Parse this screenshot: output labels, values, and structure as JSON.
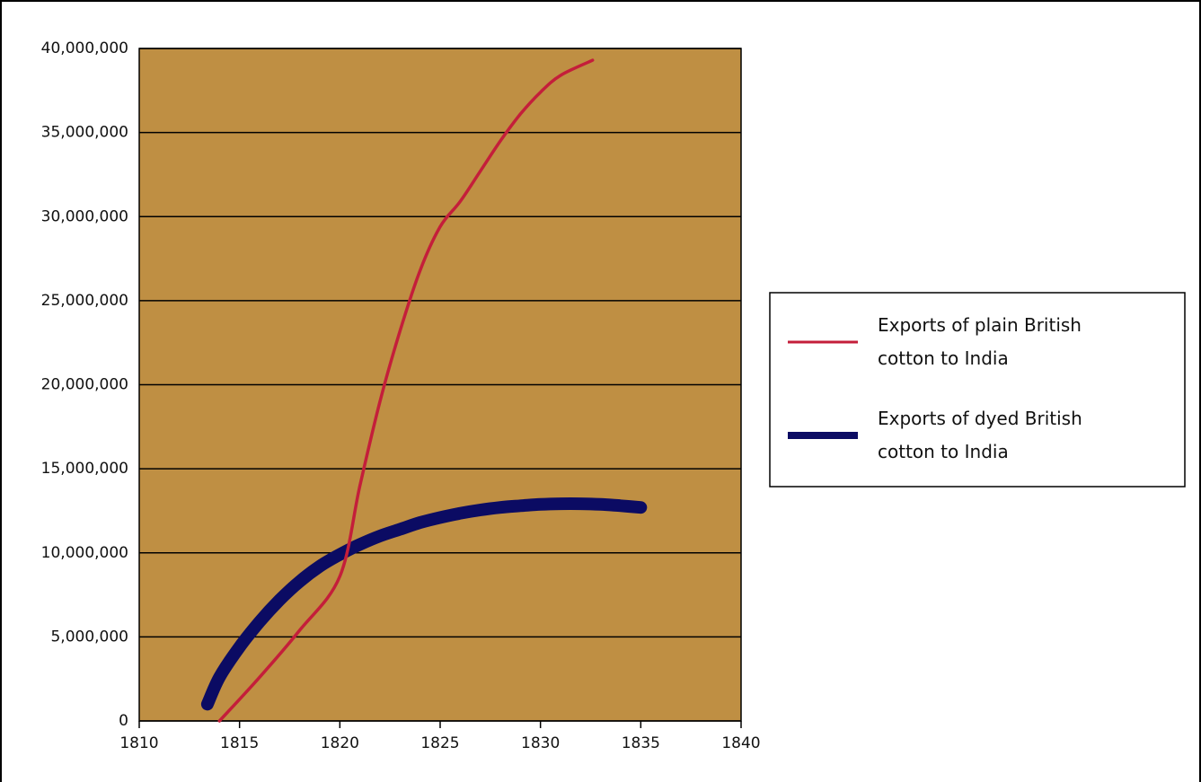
{
  "chart_data": {
    "type": "line",
    "title": "",
    "xlabel": "",
    "ylabel": "",
    "xlim": [
      1810,
      1840
    ],
    "ylim": [
      0,
      40000000
    ],
    "x_ticks": [
      1810,
      1815,
      1820,
      1825,
      1830,
      1835,
      1840
    ],
    "x_tick_labels": [
      "1810",
      "1815",
      "1820",
      "1825",
      "1830",
      "1835",
      "1840"
    ],
    "y_ticks": [
      0,
      5000000,
      10000000,
      15000000,
      20000000,
      25000000,
      30000000,
      35000000,
      40000000
    ],
    "y_tick_labels": [
      "0",
      "5,000,000",
      "10,000,000",
      "15,000,000",
      "20,000,000",
      "25,000,000",
      "30,000,000",
      "35,000,000",
      "40,000,000"
    ],
    "grid": "horizontal",
    "plot_background": "#BF8F43",
    "legend_position": "right",
    "series": [
      {
        "name": "Exports of plain British cotton to India",
        "color": "#C41E3A",
        "style": "thin",
        "points": [
          [
            1814,
            0
          ],
          [
            1816,
            2600000
          ],
          [
            1818,
            5400000
          ],
          [
            1820,
            8600000
          ],
          [
            1821,
            14000000
          ],
          [
            1822,
            19000000
          ],
          [
            1823,
            23200000
          ],
          [
            1824,
            26800000
          ],
          [
            1825,
            29400000
          ],
          [
            1826,
            30900000
          ],
          [
            1827,
            32700000
          ],
          [
            1828,
            34500000
          ],
          [
            1829,
            36100000
          ],
          [
            1830,
            37400000
          ],
          [
            1831,
            38400000
          ],
          [
            1832.6,
            39300000
          ]
        ]
      },
      {
        "name": "Exports of dyed British cotton to India",
        "color": "#0B0B63",
        "style": "thick",
        "points": [
          [
            1813.4,
            1000000
          ],
          [
            1814,
            2600000
          ],
          [
            1815,
            4400000
          ],
          [
            1816,
            5900000
          ],
          [
            1817,
            7200000
          ],
          [
            1818,
            8300000
          ],
          [
            1819,
            9200000
          ],
          [
            1820,
            9900000
          ],
          [
            1821,
            10500000
          ],
          [
            1822,
            11000000
          ],
          [
            1823,
            11400000
          ],
          [
            1824,
            11800000
          ],
          [
            1825,
            12100000
          ],
          [
            1826,
            12350000
          ],
          [
            1827,
            12550000
          ],
          [
            1828,
            12700000
          ],
          [
            1829,
            12800000
          ],
          [
            1830,
            12880000
          ],
          [
            1831,
            12920000
          ],
          [
            1832,
            12920000
          ],
          [
            1833,
            12880000
          ],
          [
            1834,
            12800000
          ],
          [
            1835,
            12700000
          ]
        ]
      }
    ],
    "legend": [
      {
        "lines": [
          "Exports of plain British",
          "cotton to India"
        ]
      },
      {
        "lines": [
          "Exports of dyed British",
          "cotton to India"
        ]
      }
    ]
  }
}
